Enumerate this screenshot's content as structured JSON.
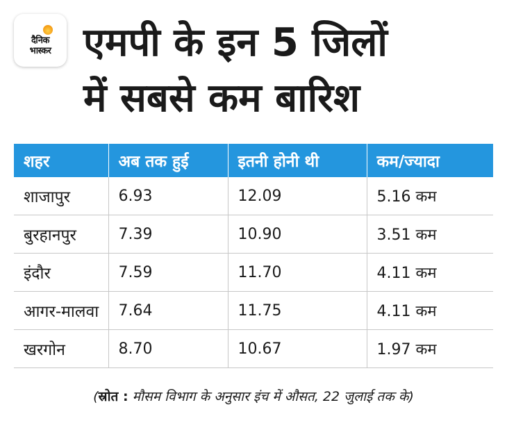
{
  "logo": {
    "line1": "दैनिक",
    "line2": "भास्कर"
  },
  "title": {
    "line1": "एमपी के इन 5 जिलों",
    "line2": "में सबसे कम बारिश"
  },
  "table": {
    "headers": [
      "शहर",
      "अब तक हुई",
      "इतनी होनी थी",
      "कम/ज्यादा"
    ],
    "rows": [
      [
        "शाजापुर",
        "6.93",
        "12.09",
        "5.16 कम"
      ],
      [
        "बुरहानपुर",
        "7.39",
        "10.90",
        "3.51 कम"
      ],
      [
        "इंदौर",
        "7.59",
        "11.70",
        "4.11 कम"
      ],
      [
        "आगर-मालवा",
        "7.64",
        "11.75",
        "4.11 कम"
      ],
      [
        "खरगोन",
        "8.70",
        "10.67",
        "1.97 कम"
      ]
    ]
  },
  "source": {
    "open_paren": "(",
    "label": "स्रोत :",
    "text": " मौसम विभाग के अनुसार इंच में औसत, 22 जुलाई तक के)"
  },
  "colors": {
    "header_bg": "#2496de",
    "header_text": "#ffffff",
    "grid": "#c7c7c7",
    "logo_sun": "#f6a21b"
  }
}
